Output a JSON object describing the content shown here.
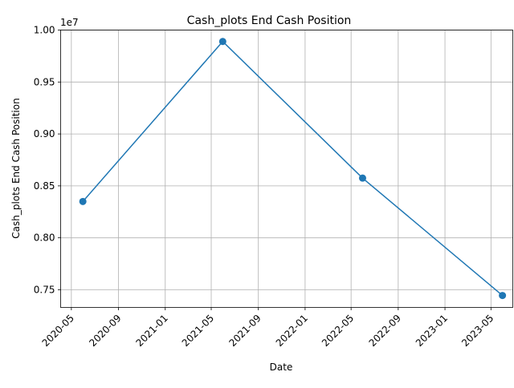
{
  "chart_data": {
    "type": "line",
    "title": "Cash_plots End Cash Position",
    "xlabel": "Date",
    "ylabel": "Cash_plots End Cash Position",
    "y_offset_label": "1e7",
    "grid": true,
    "x_tick_labels": [
      "2020-05",
      "2020-09",
      "2021-01",
      "2021-05",
      "2021-09",
      "2022-01",
      "2022-05",
      "2022-09",
      "2023-01",
      "2023-05"
    ],
    "x_tick_dates": [
      "2020-05-01",
      "2020-09-01",
      "2021-01-01",
      "2021-05-01",
      "2021-09-01",
      "2022-01-01",
      "2022-05-01",
      "2022-09-01",
      "2023-01-01",
      "2023-05-01"
    ],
    "y_tick_labels": [
      "0.75",
      "0.80",
      "0.85",
      "0.90",
      "0.95",
      "1.00"
    ],
    "y_tick_values": [
      7500000,
      8000000,
      8500000,
      9000000,
      9500000,
      10000000
    ],
    "xlim": [
      "2020-04-03",
      "2023-06-27"
    ],
    "ylim": [
      7330000,
      10000000
    ],
    "series": [
      {
        "color": "#1f77b4",
        "marker": "circle",
        "x": [
          "2020-05-31",
          "2021-05-31",
          "2022-05-31",
          "2023-05-31"
        ],
        "y": [
          8350000,
          9890000,
          8575000,
          7445000
        ]
      }
    ]
  }
}
